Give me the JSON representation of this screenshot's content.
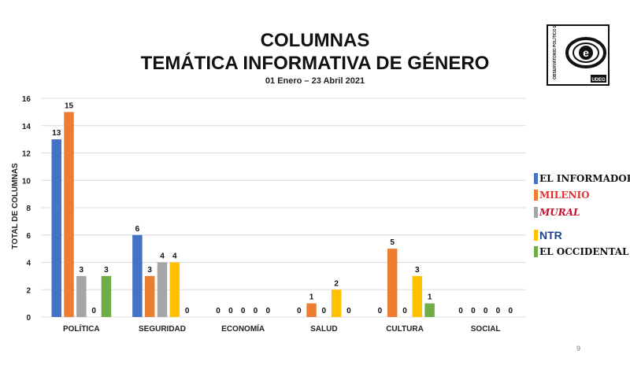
{
  "header": {
    "title_line1": "COLUMNAS",
    "title_line2": "TEMÁTICA INFORMATIVA DE GÉNERO",
    "subtitle": "01 Enero – 23 Abril 2021"
  },
  "logo": {
    "text": "OBSERVATORIO POLÍTICO ELECTORAL",
    "badge": "UDEG",
    "icon": "eye-e-icon"
  },
  "page_number": "9",
  "chart_data": {
    "type": "bar",
    "title": "COLUMNAS TEMÁTICA INFORMATIVA DE GÉNERO",
    "subtitle": "01 Enero – 23 Abril 2021",
    "xlabel": "",
    "ylabel": "TOTAL DE COLUMNAS",
    "ylim": [
      0,
      16
    ],
    "yticks": [
      0,
      2,
      4,
      6,
      8,
      10,
      12,
      14,
      16
    ],
    "grid": true,
    "legend_position": "right",
    "categories": [
      "POLÍTICA",
      "SEGURIDAD",
      "ECONOMÍA",
      "SALUD",
      "CULTURA",
      "SOCIAL"
    ],
    "series": [
      {
        "name": "EL INFORMADOR",
        "color": "#4472C4",
        "values": [
          13,
          6,
          0,
          0,
          0,
          0
        ]
      },
      {
        "name": "MILENIO",
        "color": "#ED7D31",
        "values": [
          15,
          3,
          0,
          1,
          5,
          0
        ]
      },
      {
        "name": "MURAL",
        "color": "#A5A5A5",
        "values": [
          3,
          4,
          0,
          0,
          0,
          0
        ]
      },
      {
        "name": "NTR",
        "color": "#FFC000",
        "values": [
          0,
          4,
          0,
          2,
          3,
          0
        ]
      },
      {
        "name": "EL OCCIDENTAL",
        "color": "#70AD47",
        "values": [
          3,
          0,
          0,
          0,
          1,
          0
        ]
      }
    ]
  }
}
